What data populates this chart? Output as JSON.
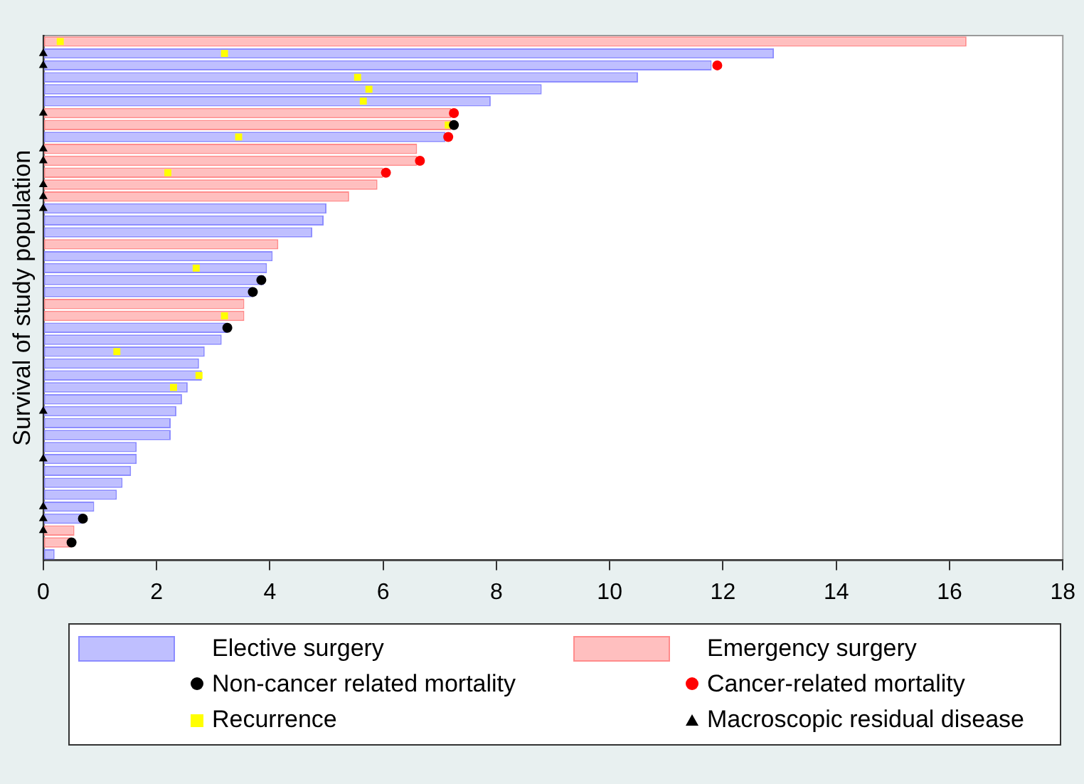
{
  "chart_data": {
    "type": "bar",
    "orientation": "horizontal",
    "ylabel": "Survival of study population",
    "categories": [
      null,
      null,
      null,
      null,
      null,
      null,
      null,
      null,
      null,
      null,
      null,
      null,
      null,
      null,
      null,
      null,
      null,
      null,
      null,
      null,
      null,
      null,
      null,
      null,
      null,
      null,
      null,
      null,
      null,
      null,
      null,
      null,
      null,
      null,
      null,
      null,
      null,
      null,
      null,
      null,
      null,
      null,
      null,
      null
    ],
    "xlim": [
      0,
      18
    ],
    "xticks": [
      0,
      2,
      4,
      6,
      8,
      10,
      12,
      14,
      16,
      18
    ],
    "tick_labels": "x",
    "grid": false,
    "legend": "bottom",
    "series": [
      {
        "name": "Elective surgery",
        "color": "#bfbfff",
        "values": [
          null,
          12.9,
          11.8,
          10.5,
          8.8,
          7.9,
          null,
          null,
          7.1,
          null,
          null,
          null,
          null,
          null,
          5.0,
          4.95,
          4.75,
          null,
          4.05,
          3.95,
          3.9,
          3.7,
          null,
          null,
          3.25,
          3.15,
          2.85,
          2.75,
          2.8,
          2.55,
          2.45,
          2.35,
          2.25,
          2.25,
          1.65,
          1.65,
          1.55,
          1.4,
          1.3,
          0.9,
          0.7,
          null,
          null,
          0.2
        ]
      },
      {
        "name": "Emergency surgery",
        "color": "#ffbfbf",
        "values": [
          16.3,
          null,
          null,
          null,
          null,
          null,
          7.2,
          7.2,
          null,
          6.6,
          6.6,
          6.0,
          5.9,
          5.4,
          null,
          null,
          null,
          4.15,
          null,
          null,
          null,
          null,
          3.55,
          3.55,
          null,
          null,
          null,
          null,
          null,
          null,
          null,
          null,
          null,
          null,
          null,
          null,
          null,
          null,
          null,
          null,
          null,
          0.55,
          0.5,
          null
        ]
      },
      {
        "name": "Non-cancer related mortality",
        "type": "scatter",
        "marker": "circle",
        "color": "#000000",
        "values": [
          null,
          null,
          null,
          null,
          null,
          null,
          null,
          7.25,
          null,
          null,
          null,
          null,
          null,
          null,
          null,
          null,
          null,
          null,
          null,
          null,
          3.85,
          3.7,
          null,
          null,
          3.25,
          null,
          null,
          null,
          null,
          null,
          null,
          null,
          null,
          null,
          null,
          null,
          null,
          null,
          null,
          null,
          0.7,
          null,
          0.5,
          null
        ]
      },
      {
        "name": "Cancer-related mortality",
        "type": "scatter",
        "marker": "circle",
        "color": "#ff0000",
        "values": [
          null,
          null,
          11.9,
          null,
          null,
          null,
          7.25,
          null,
          7.15,
          null,
          6.65,
          6.05,
          null,
          null,
          null,
          null,
          null,
          null,
          null,
          null,
          null,
          null,
          null,
          null,
          null,
          null,
          null,
          null,
          null,
          null,
          null,
          null,
          null,
          null,
          null,
          null,
          null,
          null,
          null,
          null,
          null,
          null,
          null,
          null
        ]
      },
      {
        "name": "Recurrence",
        "type": "scatter",
        "marker": "square",
        "color": "#ffff00",
        "values": [
          0.3,
          3.2,
          null,
          5.55,
          5.75,
          5.65,
          null,
          7.15,
          3.45,
          null,
          null,
          2.2,
          null,
          null,
          null,
          null,
          null,
          null,
          null,
          2.7,
          null,
          null,
          null,
          3.2,
          null,
          null,
          1.3,
          null,
          2.75,
          2.3,
          null,
          null,
          null,
          null,
          null,
          null,
          null,
          null,
          null,
          null,
          null,
          null,
          null,
          null
        ]
      },
      {
        "name": "Macroscopic residual disease",
        "type": "scatter",
        "marker": "triangle",
        "color": "#000000",
        "values": [
          null,
          0,
          0,
          null,
          null,
          null,
          0,
          null,
          null,
          0,
          0,
          null,
          0,
          0,
          0,
          null,
          null,
          null,
          null,
          null,
          null,
          null,
          null,
          null,
          null,
          null,
          null,
          null,
          null,
          null,
          null,
          0,
          null,
          null,
          null,
          0,
          null,
          null,
          null,
          0,
          0,
          0,
          null,
          null
        ]
      }
    ]
  }
}
